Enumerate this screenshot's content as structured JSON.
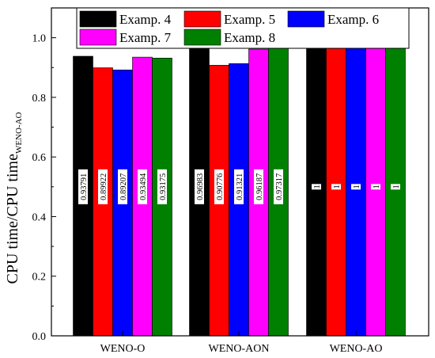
{
  "chart_data": {
    "type": "bar",
    "categories": [
      "WENO-O",
      "WENO-AON",
      "WENO-AO"
    ],
    "series": [
      {
        "name": "Examp. 4",
        "color": "#000000",
        "values": [
          0.93791,
          0.96983,
          1.0
        ],
        "labels": [
          "0.93791",
          "0.96983",
          "1"
        ]
      },
      {
        "name": "Examp. 5",
        "color": "#ff0000",
        "values": [
          0.89922,
          0.90776,
          1.0
        ],
        "labels": [
          "0.89922",
          "0.90776",
          "1"
        ]
      },
      {
        "name": "Examp. 6",
        "color": "#0000ff",
        "values": [
          0.89207,
          0.91321,
          1.0
        ],
        "labels": [
          "0.89207",
          "0.91321",
          "1"
        ]
      },
      {
        "name": "Examp. 7",
        "color": "#ff00ff",
        "values": [
          0.93494,
          0.96187,
          1.0
        ],
        "labels": [
          "0.93494",
          "0.96187",
          "1"
        ]
      },
      {
        "name": "Examp. 8",
        "color": "#008000",
        "values": [
          0.93175,
          0.97317,
          1.0
        ],
        "labels": [
          "0.93175",
          "0.97317",
          "1"
        ]
      }
    ],
    "ylabel": "CPU time/CPU time",
    "ylabel_subscript": "WENO-AO",
    "xlabel": "",
    "ylim": [
      0.0,
      1.1
    ],
    "yticks": [
      "0.0",
      "0.2",
      "0.4",
      "0.6",
      "0.8",
      "1.0"
    ],
    "ytick_values": [
      0.0,
      0.2,
      0.4,
      0.6,
      0.8,
      1.0
    ],
    "data_label_value": 0.5,
    "legend_position": "top",
    "grid": false
  }
}
